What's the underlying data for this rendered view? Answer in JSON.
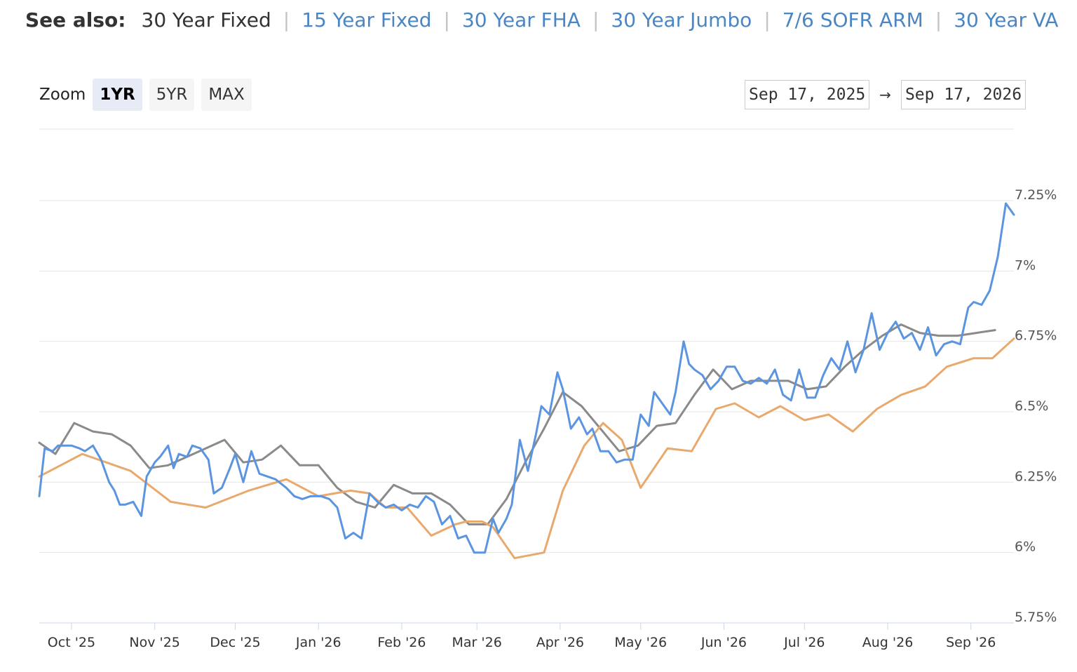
{
  "see_also": {
    "label": "See also:",
    "current": "30 Year Fixed",
    "links": [
      "15 Year Fixed",
      "30 Year FHA",
      "30 Year Jumbo",
      "7/6 SOFR ARM",
      "30 Year VA"
    ]
  },
  "zoom": {
    "label": "Zoom",
    "buttons": [
      "1YR",
      "5YR",
      "MAX"
    ],
    "active": "1YR"
  },
  "range": {
    "from": "Sep 17, 2025",
    "arrow": "→",
    "to": "Sep 17, 2026"
  },
  "colors": {
    "series_daily": "#5b95e0",
    "series_weekly_gray": "#8a8a8a",
    "series_weekly_orange": "#e9a96c",
    "grid": "#e6e6e6",
    "link": "#4b86c4"
  },
  "chart_data": {
    "type": "line",
    "title": "",
    "xlabel": "",
    "ylabel": "",
    "y_tick_labels": [
      "5.75%",
      "6%",
      "6.25%",
      "6.5%",
      "6.75%",
      "7%",
      "7.25%"
    ],
    "y_ticks": [
      5.75,
      6.0,
      6.25,
      6.5,
      6.75,
      7.0,
      7.25
    ],
    "ylim": [
      5.75,
      7.25
    ],
    "x_tick_labels": [
      "Oct '25",
      "Nov '25",
      "Dec '25",
      "Jan '26",
      "Feb '26",
      "Mar '26",
      "Apr '26",
      "May '26",
      "Jun '26",
      "Jul '26",
      "Aug '26",
      "Sep '26"
    ],
    "x_ticks": [
      "2025-10-01",
      "2025-11-01",
      "2025-12-01",
      "2026-01-01",
      "2026-02-01",
      "2026-03-01",
      "2026-04-01",
      "2026-05-01",
      "2026-06-01",
      "2026-07-01",
      "2026-08-01",
      "2026-09-01"
    ],
    "xlim": [
      "2025-09-19",
      "2026-09-17"
    ],
    "grid": true,
    "legend": false,
    "series": [
      {
        "color": "#5b95e0",
        "x": [
          "2025-09-19",
          "2025-09-21",
          "2025-09-24",
          "2025-09-26",
          "2025-09-29",
          "2025-10-01",
          "2025-10-04",
          "2025-10-06",
          "2025-10-09",
          "2025-10-12",
          "2025-10-15",
          "2025-10-17",
          "2025-10-19",
          "2025-10-21",
          "2025-10-24",
          "2025-10-27",
          "2025-10-29",
          "2025-11-01",
          "2025-11-03",
          "2025-11-06",
          "2025-11-08",
          "2025-11-10",
          "2025-11-13",
          "2025-11-15",
          "2025-11-18",
          "2025-11-21",
          "2025-11-23",
          "2025-11-26",
          "2025-11-29",
          "2025-12-01",
          "2025-12-04",
          "2025-12-07",
          "2025-12-10",
          "2025-12-13",
          "2025-12-16",
          "2025-12-20",
          "2025-12-23",
          "2025-12-26",
          "2025-12-29",
          "2026-01-02",
          "2026-01-05",
          "2026-01-08",
          "2026-01-11",
          "2026-01-14",
          "2026-01-17",
          "2026-01-20",
          "2026-01-23",
          "2026-01-26",
          "2026-01-29",
          "2026-02-01",
          "2026-02-04",
          "2026-02-07",
          "2026-02-10",
          "2026-02-13",
          "2026-02-16",
          "2026-02-19",
          "2026-02-22",
          "2026-02-25",
          "2026-02-28",
          "2026-03-01",
          "2026-03-04",
          "2026-03-07",
          "2026-03-09",
          "2026-03-12",
          "2026-03-14",
          "2026-03-17",
          "2026-03-20",
          "2026-03-23",
          "2026-03-25",
          "2026-03-28",
          "2026-03-31",
          "2026-04-02",
          "2026-04-05",
          "2026-04-08",
          "2026-04-11",
          "2026-04-13",
          "2026-04-16",
          "2026-04-19",
          "2026-04-22",
          "2026-04-25",
          "2026-04-28",
          "2026-05-01",
          "2026-05-04",
          "2026-05-06",
          "2026-05-09",
          "2026-05-12",
          "2026-05-14",
          "2026-05-17",
          "2026-05-19",
          "2026-05-21",
          "2026-05-24",
          "2026-05-27",
          "2026-05-30",
          "2026-06-02",
          "2026-06-05",
          "2026-06-08",
          "2026-06-11",
          "2026-06-14",
          "2026-06-17",
          "2026-06-20",
          "2026-06-23",
          "2026-06-26",
          "2026-06-29",
          "2026-07-02",
          "2026-07-05",
          "2026-07-08",
          "2026-07-11",
          "2026-07-14",
          "2026-07-17",
          "2026-07-20",
          "2026-07-23",
          "2026-07-26",
          "2026-07-29",
          "2026-08-01",
          "2026-08-04",
          "2026-08-07",
          "2026-08-10",
          "2026-08-13",
          "2026-08-16",
          "2026-08-19",
          "2026-08-22",
          "2026-08-25",
          "2026-08-28",
          "2026-08-31",
          "2026-09-02",
          "2026-09-05",
          "2026-09-08",
          "2026-09-11",
          "2026-09-14",
          "2026-09-17"
        ],
        "values": [
          6.2,
          6.37,
          6.36,
          6.38,
          6.38,
          6.38,
          6.37,
          6.36,
          6.38,
          6.33,
          6.25,
          6.22,
          6.17,
          6.17,
          6.18,
          6.13,
          6.27,
          6.32,
          6.34,
          6.38,
          6.3,
          6.35,
          6.34,
          6.38,
          6.37,
          6.33,
          6.21,
          6.23,
          6.3,
          6.35,
          6.25,
          6.36,
          6.28,
          6.27,
          6.26,
          6.23,
          6.2,
          6.19,
          6.2,
          6.2,
          6.19,
          6.16,
          6.05,
          6.07,
          6.05,
          6.21,
          6.18,
          6.16,
          6.17,
          6.15,
          6.17,
          6.16,
          6.2,
          6.18,
          6.1,
          6.13,
          6.05,
          6.06,
          6.0,
          6.0,
          6.0,
          6.12,
          6.07,
          6.12,
          6.17,
          6.4,
          6.29,
          6.42,
          6.52,
          6.49,
          6.64,
          6.58,
          6.44,
          6.48,
          6.42,
          6.44,
          6.36,
          6.36,
          6.32,
          6.33,
          6.33,
          6.49,
          6.45,
          6.57,
          6.53,
          6.49,
          6.57,
          6.75,
          6.67,
          6.65,
          6.63,
          6.58,
          6.61,
          6.66,
          6.66,
          6.61,
          6.6,
          6.62,
          6.6,
          6.65,
          6.56,
          6.54,
          6.65,
          6.55,
          6.55,
          6.63,
          6.69,
          6.65,
          6.75,
          6.64,
          6.72,
          6.85,
          6.72,
          6.78,
          6.82,
          6.76,
          6.78,
          6.72,
          6.8,
          6.7,
          6.74,
          6.75,
          6.74,
          6.87,
          6.89,
          6.88,
          6.93,
          7.05,
          7.24,
          7.2
        ]
      },
      {
        "color": "#8a8a8a",
        "x": [
          "2025-09-19",
          "2025-09-25",
          "2025-10-02",
          "2025-10-09",
          "2025-10-16",
          "2025-10-23",
          "2025-10-30",
          "2025-11-06",
          "2025-11-13",
          "2025-11-20",
          "2025-11-27",
          "2025-12-04",
          "2025-12-11",
          "2025-12-18",
          "2025-12-25",
          "2026-01-01",
          "2026-01-08",
          "2026-01-15",
          "2026-01-22",
          "2026-01-29",
          "2026-02-05",
          "2026-02-12",
          "2026-02-19",
          "2026-02-26",
          "2026-03-05",
          "2026-03-12",
          "2026-03-19",
          "2026-03-26",
          "2026-04-02",
          "2026-04-09",
          "2026-04-16",
          "2026-04-23",
          "2026-04-30",
          "2026-05-07",
          "2026-05-14",
          "2026-05-21",
          "2026-05-28",
          "2026-06-04",
          "2026-06-11",
          "2026-06-18",
          "2026-06-25",
          "2026-07-02",
          "2026-07-09",
          "2026-07-16",
          "2026-07-23",
          "2026-07-30",
          "2026-08-06",
          "2026-08-13",
          "2026-08-20",
          "2026-08-27",
          "2026-09-03",
          "2026-09-10"
        ],
        "values": [
          6.39,
          6.35,
          6.46,
          6.43,
          6.42,
          6.38,
          6.3,
          6.31,
          6.34,
          6.37,
          6.4,
          6.32,
          6.33,
          6.38,
          6.31,
          6.31,
          6.23,
          6.18,
          6.16,
          6.24,
          6.21,
          6.21,
          6.17,
          6.1,
          6.1,
          6.19,
          6.32,
          6.44,
          6.57,
          6.52,
          6.44,
          6.36,
          6.38,
          6.45,
          6.46,
          6.56,
          6.65,
          6.58,
          6.61,
          6.61,
          6.61,
          6.58,
          6.59,
          6.66,
          6.72,
          6.77,
          6.81,
          6.78,
          6.77,
          6.77,
          6.78,
          6.79
        ]
      },
      {
        "color": "#e9a96c",
        "x": [
          "2025-09-19",
          "2025-10-05",
          "2025-10-23",
          "2025-11-07",
          "2025-11-20",
          "2025-12-06",
          "2025-12-20",
          "2026-01-01",
          "2026-01-13",
          "2026-01-20",
          "2026-01-26",
          "2026-02-03",
          "2026-02-12",
          "2026-02-21",
          "2026-02-25",
          "2026-03-03",
          "2026-03-07",
          "2026-03-15",
          "2026-03-26",
          "2026-04-02",
          "2026-04-10",
          "2026-04-17",
          "2026-04-24",
          "2026-05-01",
          "2026-05-11",
          "2026-05-20",
          "2026-05-29",
          "2026-06-05",
          "2026-06-14",
          "2026-06-22",
          "2026-07-01",
          "2026-07-10",
          "2026-07-19",
          "2026-07-28",
          "2026-08-06",
          "2026-08-15",
          "2026-08-23",
          "2026-09-02",
          "2026-09-09",
          "2026-09-17"
        ],
        "values": [
          6.27,
          6.35,
          6.29,
          6.18,
          6.16,
          6.22,
          6.26,
          6.2,
          6.22,
          6.21,
          6.16,
          6.16,
          6.06,
          6.1,
          6.11,
          6.11,
          6.09,
          5.98,
          6.0,
          6.22,
          6.38,
          6.46,
          6.4,
          6.23,
          6.37,
          6.36,
          6.51,
          6.53,
          6.48,
          6.52,
          6.47,
          6.49,
          6.43,
          6.51,
          6.56,
          6.59,
          6.66,
          6.69,
          6.69,
          6.76
        ]
      }
    ]
  }
}
